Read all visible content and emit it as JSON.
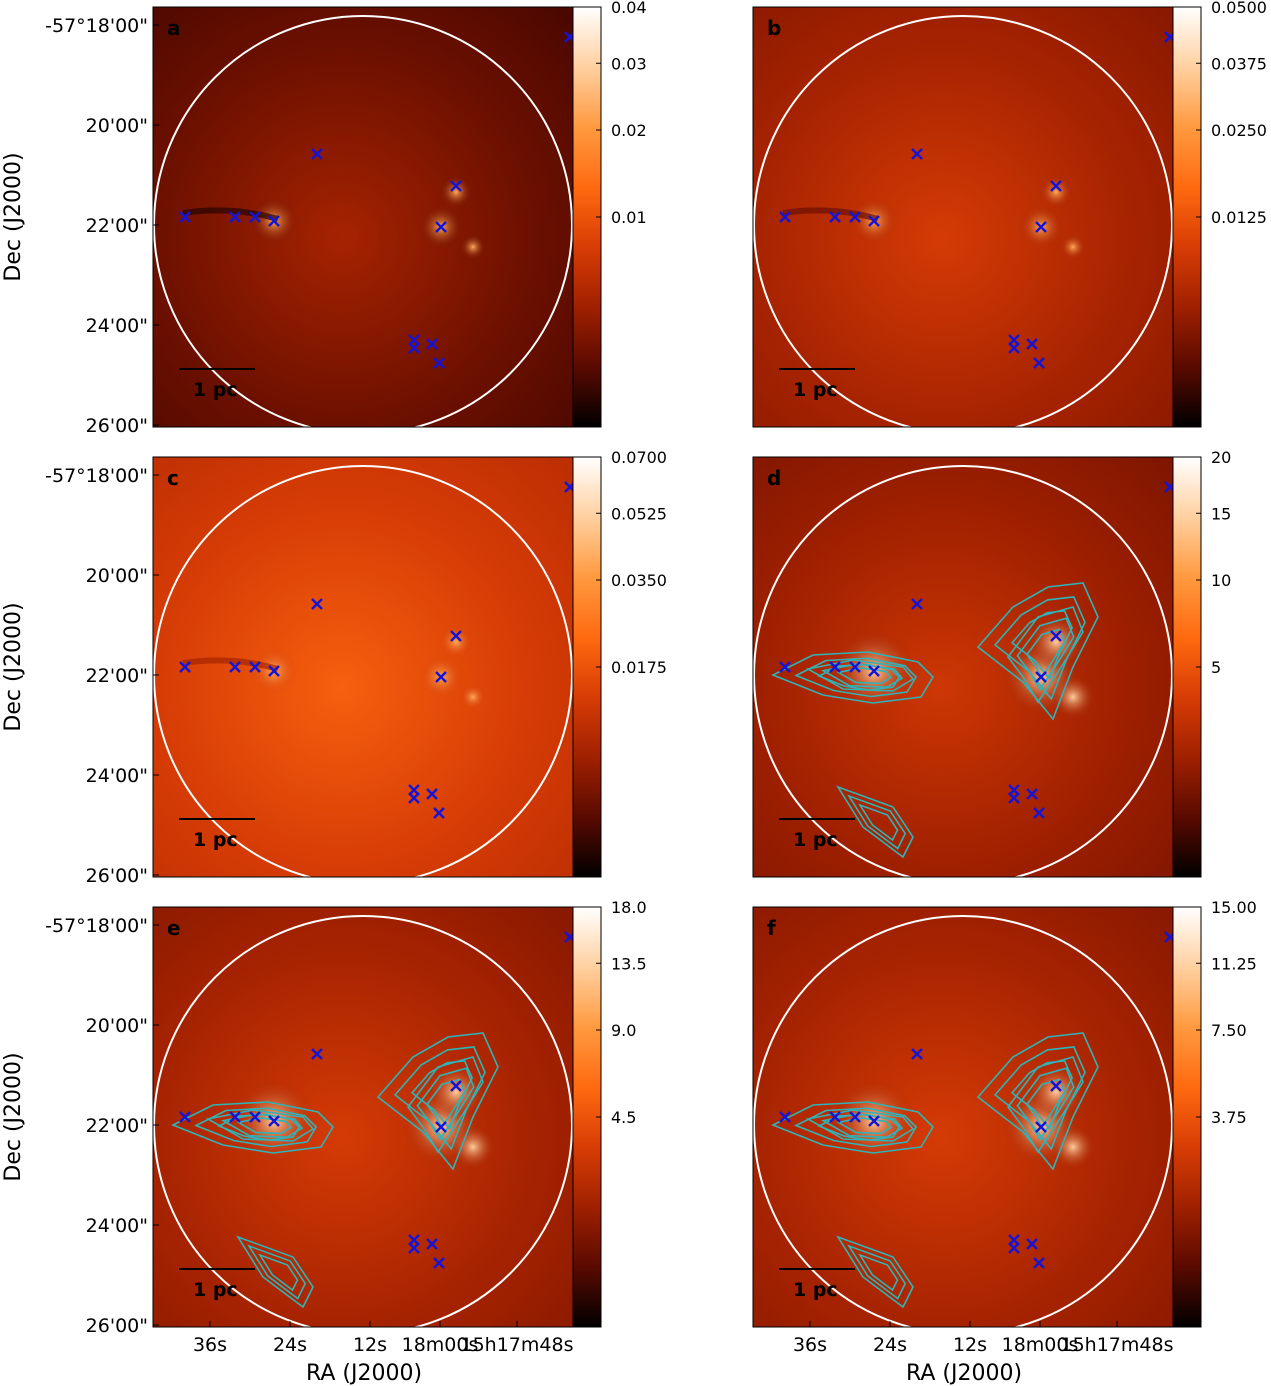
{
  "figure": {
    "ylabel": "Dec (J2000)",
    "xlabel": "RA (J2000)",
    "dec_ticks": [
      "-57°18'00\"",
      "20'00\"",
      "22'00\"",
      "24'00\"",
      "26'00\""
    ],
    "ra_ticks": [
      "36s",
      "24s",
      "12s",
      "18m00s",
      "15h17m48s"
    ],
    "scalebar_label": "1 pc"
  },
  "panels": [
    {
      "id": "a",
      "label": "a",
      "colorbar_ticks": [
        "0.04",
        "0.03",
        "0.02",
        "0.01"
      ],
      "colorbar_values": [
        0.04,
        0.03,
        0.02,
        0.01
      ],
      "colorbar_range": [
        0,
        0.04
      ],
      "brightness": 0.18,
      "contours": false
    },
    {
      "id": "b",
      "label": "b",
      "colorbar_ticks": [
        "0.0500",
        "0.0375",
        "0.0250",
        "0.0125"
      ],
      "colorbar_values": [
        0.05,
        0.0375,
        0.025,
        0.0125
      ],
      "colorbar_range": [
        0,
        0.05
      ],
      "brightness": 0.3,
      "contours": false
    },
    {
      "id": "c",
      "label": "c",
      "colorbar_ticks": [
        "0.0700",
        "0.0525",
        "0.0350",
        "0.0175"
      ],
      "colorbar_values": [
        0.07,
        0.0525,
        0.035,
        0.0175
      ],
      "colorbar_range": [
        0,
        0.07
      ],
      "brightness": 0.42,
      "contours": false
    },
    {
      "id": "d",
      "label": "d",
      "colorbar_ticks": [
        "20",
        "15",
        "10",
        "5"
      ],
      "colorbar_values": [
        20,
        15,
        10,
        5
      ],
      "colorbar_range": [
        0,
        20
      ],
      "brightness": 0.28,
      "contours": true
    },
    {
      "id": "e",
      "label": "e",
      "colorbar_ticks": [
        "18.0",
        "13.5",
        "9.0",
        "4.5"
      ],
      "colorbar_values": [
        18,
        13.5,
        9,
        4.5
      ],
      "colorbar_range": [
        0,
        18
      ],
      "brightness": 0.3,
      "contours": true
    },
    {
      "id": "f",
      "label": "f",
      "colorbar_ticks": [
        "15.00",
        "11.25",
        "7.50",
        "3.75"
      ],
      "colorbar_values": [
        15,
        11.25,
        7.5,
        3.75
      ],
      "colorbar_range": [
        0,
        15
      ],
      "brightness": 0.3,
      "contours": true
    }
  ],
  "sources": [
    {
      "ra": "36.8s",
      "dec": "21'52\""
    },
    {
      "ra": "33.0s",
      "dec": "21'52\""
    },
    {
      "ra": "31.6s",
      "dec": "21'52\""
    },
    {
      "ra": "30.3s",
      "dec": "21'58\""
    },
    {
      "ra": "26.5s",
      "dec": "20'38\""
    },
    {
      "ra": "18.8s",
      "dec": "24'20\""
    },
    {
      "ra": "18.8s",
      "dec": "24'30\""
    },
    {
      "ra": "17.5s",
      "dec": "24'25\""
    },
    {
      "ra": "16.6s",
      "dec": "24'48\""
    },
    {
      "ra": "16.6s",
      "dec": "22'05\""
    },
    {
      "ra": "15.4s",
      "dec": "21'15\""
    },
    {
      "ra": "14.0s",
      "dec": "18'20\""
    }
  ],
  "colors": {
    "marker": "#1414d8",
    "contour": "#2fb3b8",
    "circle": "#ffffff",
    "colormap": [
      "#000000",
      "#5a0a00",
      "#a02000",
      "#d83d05",
      "#ff6a10",
      "#ff9a40",
      "#ffd0a0",
      "#ffffff"
    ]
  }
}
